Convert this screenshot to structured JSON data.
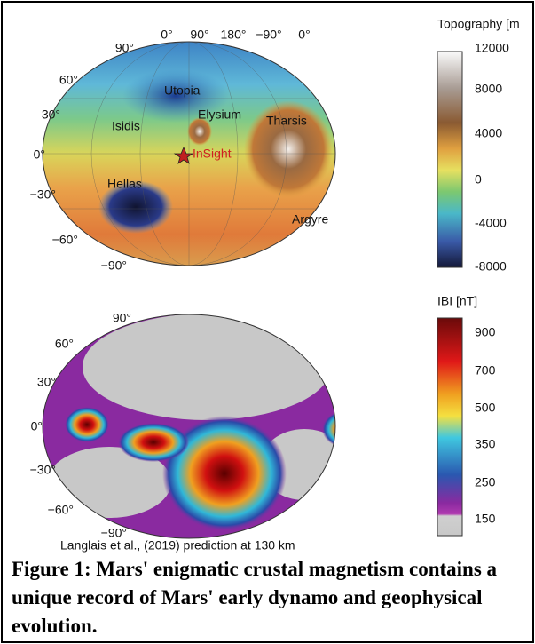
{
  "top_map": {
    "colorbar_title": "Topography [m",
    "colorbar_labels": [
      "12000",
      "8000",
      "4000",
      "0",
      "-4000",
      "-8000"
    ],
    "longitude_labels": [
      "0°",
      "90°",
      "180°",
      "−90°",
      "0°"
    ],
    "latitude_labels": [
      "90°",
      "60°",
      "30°",
      "0°",
      "−30°",
      "−60°",
      "−90°"
    ],
    "place_labels": [
      "Utopia",
      "Elysium",
      "Tharsis",
      "Isidis",
      "InSight",
      "Hellas",
      "Argyre"
    ]
  },
  "bottom_map": {
    "colorbar_title": "IBI [nT]",
    "colorbar_labels": [
      "900",
      "700",
      "500",
      "350",
      "250",
      "150"
    ],
    "latitude_labels": [
      "90°",
      "60°",
      "30°",
      "0°",
      "−30°",
      "−60°",
      "−90°"
    ],
    "credit": "Langlais et al., (2019) prediction at 130 km"
  },
  "caption": "Figure 1: Mars' enigmatic crustal magnetism contains a unique record of Mars' early dynamo and geophysical evolution."
}
